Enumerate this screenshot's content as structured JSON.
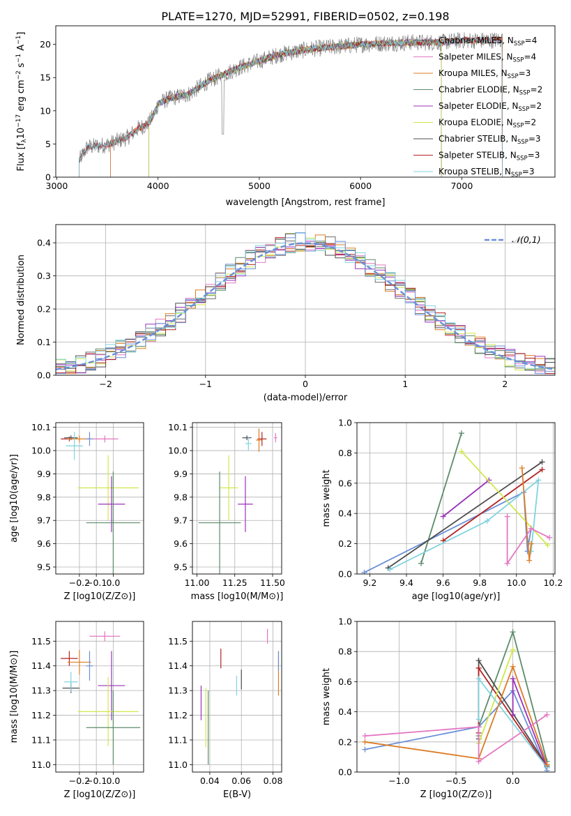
{
  "figure": {
    "title": "PLATE=1270, MJD=52991, FIBERID=0502, z=0.198"
  },
  "chart_data": [
    {
      "id": "spectrum",
      "type": "line",
      "xlabel": "wavelength [Angstrom, rest frame]",
      "ylabel": "Flux [f_λ 10^-17 erg cm^-2 s^-1 A^-1]",
      "xlim": [
        2990,
        7920
      ],
      "ylim": [
        0,
        22.8
      ],
      "xticks": [
        3000,
        4000,
        5000,
        6000,
        7000
      ],
      "yticks": [
        0,
        5,
        10,
        15,
        20
      ],
      "grid": false,
      "legend_position": "top-right",
      "series": [
        {
          "name": "Chabrier MILES, N_SSP=4",
          "color": "#6b6b6b",
          "range": [
            3530,
            7400
          ]
        },
        {
          "name": "Salpeter MILES, N_SSP=4",
          "color": "#e377c2",
          "range": [
            3530,
            7400
          ]
        },
        {
          "name": "Kroupa MILES, N_SSP=3",
          "color": "#dc7c26",
          "range": [
            3530,
            7400
          ]
        },
        {
          "name": "Chabrier ELODIE, N_SSP=2",
          "color": "#5b8b6a",
          "range": [
            3910,
            6800
          ]
        },
        {
          "name": "Salpeter ELODIE, N_SSP=2",
          "color": "#9932b9",
          "range": [
            3910,
            6800
          ]
        },
        {
          "name": "Kroupa ELODIE, N_SSP=2",
          "color": "#d0e84a",
          "range": [
            3910,
            6800
          ]
        },
        {
          "name": "Chabrier STELIB, N_SSP=3",
          "color": "#4c4c4c",
          "range": [
            3220,
            7400
          ]
        },
        {
          "name": "Salpeter STELIB, N_SSP=3",
          "color": "#b22222",
          "range": [
            3220,
            7400
          ]
        },
        {
          "name": "Kroupa STELIB, N_SSP=3",
          "color": "#7fd3e0",
          "range": [
            3220,
            7400
          ]
        }
      ],
      "continuum": {
        "x": [
          3220,
          3300,
          3500,
          3700,
          3800,
          3900,
          3950,
          4000,
          4100,
          4300,
          4500,
          4800,
          5000,
          5200,
          5500,
          5800,
          6000,
          6300,
          6500,
          6800,
          7000,
          7200,
          7400
        ],
        "y": [
          2.5,
          4.5,
          4.9,
          6.0,
          7.3,
          8.0,
          9.2,
          11.0,
          11.8,
          12.5,
          14.5,
          16.5,
          17.5,
          18.5,
          19.3,
          19.7,
          20.0,
          20.2,
          20.3,
          20.3,
          20.6,
          20.6,
          20.7
        ]
      }
    },
    {
      "id": "residuals",
      "type": "line",
      "xlabel": "(data-model)/error",
      "ylabel": "Normed distribution",
      "xlim": [
        -2.5,
        2.5
      ],
      "ylim": [
        0,
        0.455
      ],
      "xticks": [
        -2,
        -1,
        0,
        1,
        2
      ],
      "yticks": [
        0.0,
        0.1,
        0.2,
        0.3,
        0.4
      ],
      "grid": true,
      "legend_position": "top-right",
      "legend": "𝒩(0,1)",
      "reference_curve": {
        "name": "𝒩(0,1)",
        "color": "#6a8fd8",
        "style": "dashed",
        "mu": 0,
        "sigma": 1
      },
      "histogram_bin_width": 0.1,
      "histogram_colors": [
        "#6b6b6b",
        "#e377c2",
        "#dc7c26",
        "#5b8b6a",
        "#9932b9",
        "#d0e84a",
        "#4c4c4c",
        "#b22222",
        "#7fd3e0",
        "#6a8fd8"
      ]
    },
    {
      "id": "age_vs_Z",
      "type": "scatter",
      "xlabel": "Z [log10(Z/Z⊙)]",
      "ylabel": "age [log10(age/yr)]",
      "xlim": [
        -0.34,
        0.18
      ],
      "ylim": [
        9.47,
        10.12
      ],
      "xticks": [
        -0.2,
        -0.1,
        0.0
      ],
      "yticks": [
        9.5,
        9.6,
        9.7,
        9.8,
        9.9,
        10.0,
        10.1
      ],
      "grid": true,
      "points": [
        {
          "x": -0.26,
          "y": 10.05,
          "xerr": 0.05,
          "yerr": 0.01,
          "color": "#b22222"
        },
        {
          "x": -0.25,
          "y": 10.055,
          "xerr": 0.04,
          "yerr": 0.01,
          "color": "#4c4c4c"
        },
        {
          "x": -0.2,
          "y": 10.05,
          "xerr": 0.07,
          "yerr": 0.015,
          "color": "#dc7c26"
        },
        {
          "x": -0.05,
          "y": 10.05,
          "xerr": 0.08,
          "yerr": 0.015,
          "color": "#e377c2"
        },
        {
          "x": -0.14,
          "y": 10.05,
          "xerr": 0.02,
          "yerr": 0.03,
          "color": "#6a8fd8"
        },
        {
          "x": -0.23,
          "y": 10.02,
          "xerr": 0.05,
          "yerr": 0.06,
          "color": "#7fd3e0"
        },
        {
          "x": -0.03,
          "y": 9.84,
          "xerr": 0.18,
          "yerr": 0.14,
          "color": "#d0e84a"
        },
        {
          "x": -0.01,
          "y": 9.77,
          "xerr": 0.08,
          "yerr": 0.12,
          "color": "#9932b9"
        },
        {
          "x": 0.0,
          "y": 9.69,
          "xerr": 0.16,
          "yerr": 0.22,
          "color": "#5b8b6a"
        }
      ]
    },
    {
      "id": "age_vs_mass",
      "type": "scatter",
      "xlabel": "mass [log10(M/M⊙)]",
      "ylabel": "",
      "xlim": [
        10.97,
        11.56
      ],
      "ylim": [
        9.47,
        10.12
      ],
      "xticks": [
        11.0,
        11.25,
        11.5
      ],
      "yticks": [
        9.5,
        9.6,
        9.7,
        9.8,
        9.9,
        10.0,
        10.1
      ],
      "grid": true,
      "points": [
        {
          "x": 11.43,
          "y": 10.05,
          "xerr": 0.03,
          "yerr": 0.03,
          "color": "#b22222"
        },
        {
          "x": 11.41,
          "y": 10.045,
          "xerr": 0.02,
          "yerr": 0.05,
          "color": "#dc7c26"
        },
        {
          "x": 11.52,
          "y": 10.055,
          "xerr": 0.01,
          "yerr": 0.02,
          "color": "#e377c2"
        },
        {
          "x": 11.33,
          "y": 10.055,
          "xerr": 0.03,
          "yerr": 0.01,
          "color": "#4c4c4c"
        },
        {
          "x": 11.34,
          "y": 10.03,
          "xerr": 0.02,
          "yerr": 0.03,
          "color": "#7fd3e0"
        },
        {
          "x": 11.21,
          "y": 9.84,
          "xerr": 0.06,
          "yerr": 0.14,
          "color": "#d0e84a"
        },
        {
          "x": 11.32,
          "y": 9.77,
          "xerr": 0.05,
          "yerr": 0.12,
          "color": "#9932b9"
        },
        {
          "x": 11.15,
          "y": 9.69,
          "xerr": 0.14,
          "yerr": 0.22,
          "color": "#5b8b6a"
        }
      ]
    },
    {
      "id": "weight_vs_age",
      "type": "line",
      "xlabel": "age [log10(age/yr)]",
      "ylabel": "mass weight",
      "xlim": [
        9.13,
        10.21
      ],
      "ylim": [
        0.0,
        1.0
      ],
      "xticks": [
        9.2,
        9.4,
        9.6,
        9.8,
        10.0,
        10.2
      ],
      "yticks": [
        0.0,
        0.2,
        0.4,
        0.6,
        0.8,
        1.0
      ],
      "grid": true,
      "series": [
        {
          "color": "#6a8fd8",
          "x": [
            9.17,
            10.04,
            10.06,
            10.08
          ],
          "y": [
            0.01,
            0.54,
            0.15,
            0.3
          ]
        },
        {
          "color": "#5b8b6a",
          "x": [
            9.48,
            9.7
          ],
          "y": [
            0.07,
            0.93
          ]
        },
        {
          "color": "#4c4c4c",
          "x": [
            9.3,
            10.14
          ],
          "y": [
            0.04,
            0.74
          ]
        },
        {
          "color": "#b22222",
          "x": [
            9.6,
            10.14
          ],
          "y": [
            0.22,
            0.69
          ]
        },
        {
          "color": "#9932b9",
          "x": [
            9.6,
            9.85
          ],
          "y": [
            0.38,
            0.62
          ]
        },
        {
          "color": "#d0e84a",
          "x": [
            9.7,
            10.17
          ],
          "y": [
            0.81,
            0.19
          ]
        },
        {
          "color": "#7fd3e0",
          "x": [
            9.31,
            9.84,
            10.12,
            10.08
          ],
          "y": [
            0.03,
            0.35,
            0.62,
            0.15
          ]
        },
        {
          "color": "#dc7c26",
          "x": [
            10.03,
            10.07,
            10.08
          ],
          "y": [
            0.7,
            0.09,
            0.2
          ]
        },
        {
          "color": "#e377c2",
          "x": [
            9.95,
            9.95,
            10.08,
            10.18
          ],
          "y": [
            0.38,
            0.07,
            0.3,
            0.24
          ]
        }
      ]
    },
    {
      "id": "mass_vs_Z",
      "type": "scatter",
      "xlabel": "Z [log10(Z/Z⊙)]",
      "ylabel": "mass [log10(M/M⊙)]",
      "xlim": [
        -0.34,
        0.18
      ],
      "ylim": [
        10.97,
        11.58
      ],
      "xticks": [
        -0.2,
        -0.1,
        0.0
      ],
      "yticks": [
        11.0,
        11.1,
        11.2,
        11.3,
        11.4,
        11.5
      ],
      "grid": true,
      "points": [
        {
          "x": -0.05,
          "y": 11.52,
          "xerr": 0.09,
          "yerr": 0.02,
          "color": "#e377c2"
        },
        {
          "x": -0.26,
          "y": 11.43,
          "xerr": 0.05,
          "yerr": 0.03,
          "color": "#b22222"
        },
        {
          "x": -0.2,
          "y": 11.415,
          "xerr": 0.07,
          "yerr": 0.05,
          "color": "#dc7c26"
        },
        {
          "x": -0.14,
          "y": 11.4,
          "xerr": 0.02,
          "yerr": 0.06,
          "color": "#6a8fd8"
        },
        {
          "x": -0.25,
          "y": 11.31,
          "xerr": 0.05,
          "yerr": 0.02,
          "color": "#4c4c4c"
        },
        {
          "x": -0.25,
          "y": 11.335,
          "xerr": 0.04,
          "yerr": 0.04,
          "color": "#7fd3e0"
        },
        {
          "x": -0.01,
          "y": 11.32,
          "xerr": 0.08,
          "yerr": 0.14,
          "color": "#9932b9"
        },
        {
          "x": -0.03,
          "y": 11.215,
          "xerr": 0.18,
          "yerr": 0.14,
          "color": "#d0e84a"
        },
        {
          "x": 0.0,
          "y": 11.15,
          "xerr": 0.16,
          "yerr": 0.15,
          "color": "#5b8b6a"
        }
      ]
    },
    {
      "id": "mass_vs_ebv",
      "type": "scatter",
      "xlabel": "E(B-V)",
      "ylabel": "",
      "xlim": [
        0.029,
        0.0855
      ],
      "ylim": [
        10.97,
        11.58
      ],
      "xticks": [
        0.04,
        0.06,
        0.08
      ],
      "yticks": [
        11.0,
        11.1,
        11.2,
        11.3,
        11.4,
        11.5
      ],
      "grid": true,
      "points": [
        {
          "x": 0.0765,
          "y": 11.52,
          "xerr": 0,
          "yerr": 0.03,
          "color": "#e377c2"
        },
        {
          "x": 0.047,
          "y": 11.43,
          "xerr": 0,
          "yerr": 0.04,
          "color": "#b22222"
        },
        {
          "x": 0.0835,
          "y": 11.37,
          "xerr": 0,
          "yerr": 0.09,
          "color": "#dc7c26"
        },
        {
          "x": 0.0835,
          "y": 11.42,
          "xerr": 0,
          "yerr": 0.04,
          "color": "#6a8fd8"
        },
        {
          "x": 0.06,
          "y": 11.345,
          "xerr": 0,
          "yerr": 0.04,
          "color": "#4c4c4c"
        },
        {
          "x": 0.057,
          "y": 11.32,
          "xerr": 0,
          "yerr": 0.04,
          "color": "#7fd3e0"
        },
        {
          "x": 0.0345,
          "y": 11.25,
          "xerr": 0,
          "yerr": 0.07,
          "color": "#9932b9"
        },
        {
          "x": 0.0375,
          "y": 11.19,
          "xerr": 0,
          "yerr": 0.12,
          "color": "#d0e84a"
        },
        {
          "x": 0.039,
          "y": 11.15,
          "xerr": 0,
          "yerr": 0.15,
          "color": "#5b8b6a"
        }
      ]
    },
    {
      "id": "weight_vs_Z",
      "type": "line",
      "xlabel": "Z [log10(Z/Z⊙)]",
      "ylabel": "mass weight",
      "xlim": [
        -1.37,
        0.37
      ],
      "ylim": [
        0.0,
        1.0
      ],
      "xticks": [
        -1.0,
        -0.5,
        0.0
      ],
      "yticks": [
        0.0,
        0.2,
        0.4,
        0.6,
        0.8,
        1.0
      ],
      "grid": true,
      "series": [
        {
          "color": "#6a8fd8",
          "x": [
            -1.3,
            -0.3,
            0.0,
            0.3
          ],
          "y": [
            0.15,
            0.3,
            0.54,
            0.01
          ]
        },
        {
          "color": "#5b8b6a",
          "x": [
            -0.3,
            -0.3,
            0.0,
            0.3
          ],
          "y": [
            0.24,
            0.3,
            0.93,
            0.07
          ]
        },
        {
          "color": "#4c4c4c",
          "x": [
            -0.3,
            -0.3,
            0.3
          ],
          "y": [
            0.22,
            0.74,
            0.04
          ]
        },
        {
          "color": "#b22222",
          "x": [
            -0.3,
            -0.3,
            0.3
          ],
          "y": [
            0.26,
            0.69,
            0.03
          ]
        },
        {
          "color": "#9932b9",
          "x": [
            0.0,
            0.0,
            0.3
          ],
          "y": [
            0.38,
            0.62,
            0.03
          ]
        },
        {
          "color": "#d0e84a",
          "x": [
            -0.3,
            0.0,
            0.0
          ],
          "y": [
            0.19,
            0.81,
            0.81
          ]
        },
        {
          "color": "#7fd3e0",
          "x": [
            -0.3,
            -0.3,
            0.3
          ],
          "y": [
            0.35,
            0.62,
            0.03
          ]
        },
        {
          "color": "#dc7c26",
          "x": [
            -1.3,
            -0.3,
            0.0,
            0.3
          ],
          "y": [
            0.2,
            0.09,
            0.7,
            0.05
          ]
        },
        {
          "color": "#e377c2",
          "x": [
            -1.3,
            -0.3,
            -0.3,
            0.3
          ],
          "y": [
            0.24,
            0.3,
            0.07,
            0.38
          ]
        }
      ]
    }
  ]
}
